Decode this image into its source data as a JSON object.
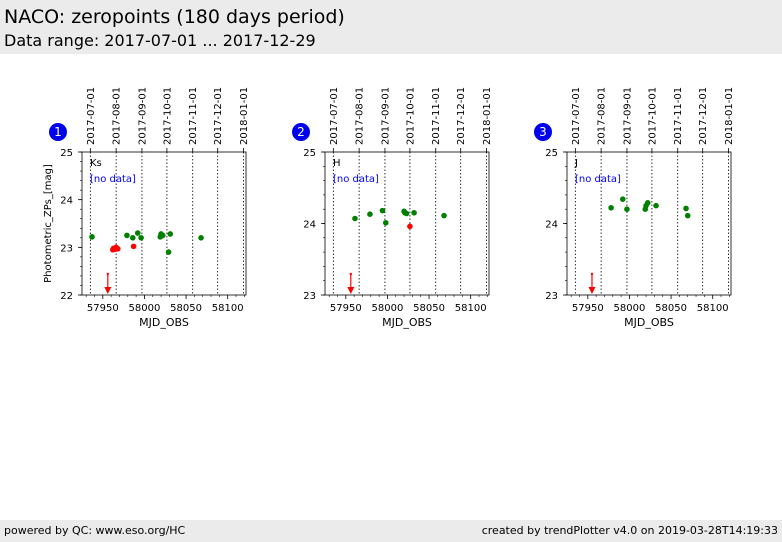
{
  "header": {
    "title": "NACO: zeropoints (180 days period)",
    "subtitle": "Data range: 2017-07-01 ... 2017-12-29"
  },
  "footer": {
    "left": "powered by QC: www.eso.org/HC",
    "right": "created by trendPlotter v4.0 on 2019-03-28T14:19:33"
  },
  "colors": {
    "good": "#008000",
    "bad": "#ff0000",
    "nodata": "#0000ff",
    "badge": "#0000ee"
  },
  "chart_data": [
    {
      "type": "scatter",
      "badge": "1",
      "band": "Ks",
      "note": "[no data]",
      "xlabel": "MJD_OBS",
      "ylabel": "Photometric_ZPs_[mag]",
      "xlim": [
        57925,
        58122
      ],
      "ylim": [
        22,
        25
      ],
      "xticks": [
        "57950",
        "58000",
        "58050",
        "58100"
      ],
      "yticks": [
        "22",
        "23",
        "24",
        "25"
      ],
      "top_axis_dates": [
        "2017-07-01",
        "2017-08-01",
        "2017-09-01",
        "2017-10-01",
        "2017-11-01",
        "2017-12-01",
        "2018-01-01"
      ],
      "top_axis_mjd": [
        57935,
        57966,
        57997,
        58027,
        58058,
        58088,
        58119
      ],
      "good_points": [
        [
          57937,
          23.22
        ],
        [
          57979,
          23.25
        ],
        [
          57986,
          23.2
        ],
        [
          57992,
          23.3
        ],
        [
          57996,
          23.2
        ],
        [
          58019,
          23.22
        ],
        [
          58020,
          23.28
        ],
        [
          58022,
          23.25
        ],
        [
          58029,
          22.9
        ],
        [
          58031,
          23.28
        ],
        [
          58068,
          23.2
        ]
      ],
      "bad_points": [
        [
          57962,
          22.95
        ],
        [
          57963,
          22.98
        ],
        [
          57965,
          22.96
        ],
        [
          57966,
          23.0
        ],
        [
          57968,
          22.97
        ],
        [
          57987,
          23.02
        ]
      ],
      "outlier_arrows": [
        57956
      ]
    },
    {
      "type": "scatter",
      "badge": "2",
      "band": "H",
      "note": "[no data]",
      "xlabel": "MJD_OBS",
      "ylabel": "",
      "xlim": [
        57925,
        58122
      ],
      "ylim": [
        23,
        25
      ],
      "xticks": [
        "57950",
        "58000",
        "58050",
        "58100"
      ],
      "yticks": [
        "23",
        "24",
        "25"
      ],
      "top_axis_dates": [
        "2017-07-01",
        "2017-08-01",
        "2017-09-01",
        "2017-10-01",
        "2017-11-01",
        "2017-12-01",
        "2018-01-01"
      ],
      "top_axis_mjd": [
        57935,
        57966,
        57997,
        58027,
        58058,
        58088,
        58119
      ],
      "good_points": [
        [
          57961,
          24.07
        ],
        [
          57979,
          24.13
        ],
        [
          57994,
          24.18
        ],
        [
          57998,
          24.01
        ],
        [
          58020,
          24.17
        ],
        [
          58021,
          24.15
        ],
        [
          58023,
          24.14
        ],
        [
          58032,
          24.15
        ],
        [
          58068,
          24.11
        ]
      ],
      "bad_points": [
        [
          58027,
          23.96
        ]
      ],
      "outlier_arrows": [
        57956
      ]
    },
    {
      "type": "scatter",
      "badge": "3",
      "band": "J",
      "note": "[no data]",
      "xlabel": "MJD_OBS",
      "ylabel": "",
      "xlim": [
        57925,
        58122
      ],
      "ylim": [
        23,
        25
      ],
      "xticks": [
        "57950",
        "58000",
        "58050",
        "58100"
      ],
      "yticks": [
        "23",
        "24",
        "25"
      ],
      "top_axis_dates": [
        "2017-07-01",
        "2017-08-01",
        "2017-09-01",
        "2017-10-01",
        "2017-11-01",
        "2017-12-01",
        "2018-01-01"
      ],
      "top_axis_mjd": [
        57935,
        57966,
        57997,
        58027,
        58058,
        58088,
        58119
      ],
      "good_points": [
        [
          57978,
          24.22
        ],
        [
          57992,
          24.34
        ],
        [
          57997,
          24.2
        ],
        [
          58019,
          24.2
        ],
        [
          58020,
          24.25
        ],
        [
          58022,
          24.29
        ],
        [
          58032,
          24.25
        ],
        [
          58068,
          24.21
        ],
        [
          58070,
          24.11
        ]
      ],
      "bad_points": [],
      "outlier_arrows": [
        57955
      ]
    }
  ]
}
